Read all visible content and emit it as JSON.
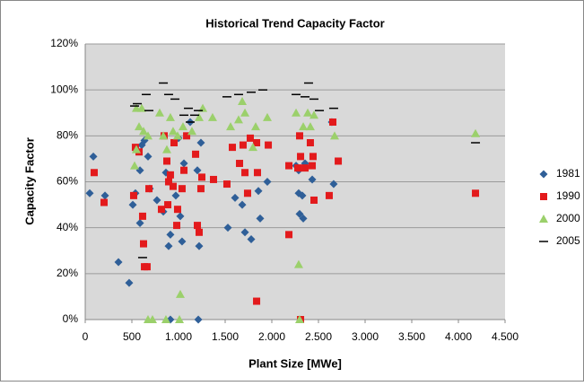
{
  "chart_data": {
    "type": "scatter",
    "title": "Historical Trend Capacity Factor",
    "xlabel": "Plant Size [MWe]",
    "ylabel": "Capacity Factor",
    "xlim": [
      0,
      4500
    ],
    "ylim": [
      0,
      120
    ],
    "xticks": [
      0,
      500,
      {
        "value": 1000,
        "label": "1.000"
      },
      {
        "value": 1500,
        "label": "1.500"
      },
      {
        "value": 2000,
        "label": "2.000"
      },
      {
        "value": 2500,
        "label": "2.500"
      },
      {
        "value": 3000,
        "label": "3.000"
      },
      {
        "value": 3500,
        "label": "3.500"
      },
      {
        "value": 4000,
        "label": "4.000"
      },
      {
        "value": 4500,
        "label": "4.500"
      }
    ],
    "yticks": [
      {
        "value": 0,
        "label": "0%"
      },
      {
        "value": 20,
        "label": "20%"
      },
      {
        "value": 40,
        "label": "40%"
      },
      {
        "value": 60,
        "label": "60%"
      },
      {
        "value": 80,
        "label": "80%"
      },
      {
        "value": 100,
        "label": "100%"
      },
      {
        "value": 120,
        "label": "120%"
      }
    ],
    "grid": true,
    "legend": "right",
    "series": [
      {
        "name": "1981",
        "color": "#2f5f98",
        "marker": "diamond",
        "x": [
          87,
          48,
          212,
          356,
          471,
          510,
          538,
          587,
          587,
          606,
          635,
          673,
          692,
          769,
          837,
          865,
          894,
          913,
          913,
          971,
          1000,
          1019,
          1038,
          1058,
          1212,
          1221,
          1125,
          1202,
          1240,
          1529,
          1606,
          1683,
          1712,
          1779,
          1856,
          1875,
          1952,
          2260,
          2288,
          2288,
          2298,
          2337,
          2327,
          2356,
          2433,
          2663,
          2644
        ],
        "values": [
          71,
          55,
          54,
          25,
          16,
          50,
          55,
          65,
          42,
          76,
          78,
          71,
          57,
          52,
          47,
          64,
          32,
          0,
          37,
          54,
          79,
          45,
          34,
          68,
          0,
          32,
          86,
          65,
          77,
          40,
          53,
          50,
          38,
          35,
          56,
          44,
          60,
          67,
          55,
          65,
          46,
          44,
          54,
          68,
          61,
          59,
          86
        ]
      },
      {
        "name": "1990",
        "color": "#e31a1c",
        "marker": "square",
        "x": [
          96,
          202,
          519,
          538,
          577,
          615,
          625,
          635,
          663,
          683,
          817,
          846,
          875,
          885,
          894,
          913,
          942,
          952,
          981,
          990,
          1038,
          1058,
          1087,
          1183,
          1202,
          1221,
          1240,
          1250,
          1375,
          1519,
          1577,
          1654,
          1692,
          1712,
          1740,
          1769,
          1837,
          1846,
          1837,
          1962,
          2183,
          2183,
          2279,
          2298,
          2308,
          2308,
          2356,
          2413,
          2442,
          2433,
          2452,
          2615,
          2712,
          2654,
          4183
        ],
        "values": [
          64,
          51,
          54,
          75,
          73,
          45,
          33,
          23,
          23,
          57,
          48,
          80,
          69,
          50,
          60,
          63,
          58,
          77,
          41,
          48,
          57,
          65,
          80,
          72,
          41,
          38,
          57,
          62,
          61,
          59,
          75,
          68,
          76,
          64,
          55,
          79,
          77,
          64,
          8,
          76,
          37,
          67,
          66,
          80,
          71,
          0,
          66,
          77,
          71,
          67,
          52,
          54,
          69,
          86,
          55
        ]
      },
      {
        "name": "2000",
        "color": "#9bd06b",
        "marker": "triangle",
        "x": [
          673,
          721,
          865,
          1019,
          1010,
          548,
          529,
          577,
          625,
          673,
          798,
          837,
          875,
          913,
          942,
          990,
          1048,
          1144,
          1221,
          1260,
          1365,
          1558,
          1644,
          1683,
          1712,
          1798,
          1827,
          1952,
          2260,
          2288,
          2298,
          2337,
          2385,
          2413,
          2452,
          2673,
          4183,
          548,
          606
        ],
        "values": [
          0,
          0,
          0,
          11,
          0,
          74,
          67,
          84,
          82,
          80,
          90,
          80,
          74,
          88,
          82,
          80,
          84,
          82,
          88,
          92,
          88,
          84,
          87,
          95,
          90,
          75,
          84,
          88,
          90,
          24,
          0,
          84,
          90,
          84,
          89,
          80,
          81,
          92,
          92
        ]
      },
      {
        "name": "2005",
        "color": "#000000",
        "marker": "dash",
        "x": [
          529,
          558,
          654,
          837,
          894,
          962,
          1106,
          1173,
          1212,
          1519,
          1644,
          1779,
          1904,
          2260,
          2356,
          2452,
          2663,
          4183,
          615,
          683,
          1058,
          1125,
          2394,
          2510
        ],
        "values": [
          93,
          94,
          98,
          103,
          98,
          96,
          92,
          89,
          91,
          97,
          98,
          99,
          100,
          98,
          97,
          96,
          92,
          77,
          27,
          91,
          89,
          86,
          103,
          91
        ]
      }
    ]
  }
}
